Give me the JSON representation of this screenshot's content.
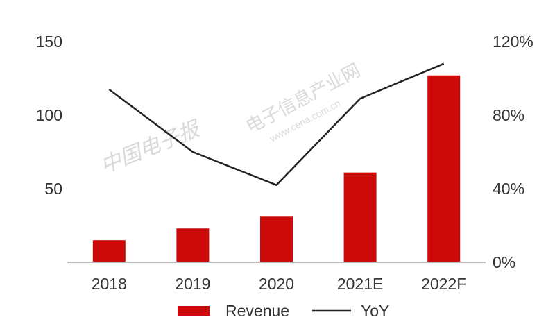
{
  "chart_data": {
    "type": "bar",
    "categories": [
      "2018",
      "2019",
      "2020",
      "2021E",
      "2022F"
    ],
    "series": [
      {
        "name": "Revenue",
        "type": "bar",
        "axis": "left",
        "values": [
          15,
          23,
          31,
          61,
          127
        ]
      },
      {
        "name": "YoY",
        "type": "line",
        "axis": "right",
        "values": [
          0.94,
          0.6,
          0.42,
          0.89,
          1.08
        ]
      }
    ],
    "y_left": {
      "ticks": [
        "50",
        "100",
        "150"
      ],
      "ylim": [
        0,
        150
      ],
      "tick_values": [
        50,
        100,
        150
      ]
    },
    "y_right": {
      "ticks": [
        "0%",
        "40%",
        "80%",
        "120%"
      ],
      "ylim": [
        0,
        1.2
      ],
      "tick_values": [
        0,
        0.4,
        0.8,
        1.2
      ]
    },
    "legend": {
      "position": "bottom",
      "items": [
        "Revenue",
        "YoY"
      ]
    },
    "grid": false,
    "colors": {
      "bar": "#cc0a0a",
      "line": "#222222",
      "axis": "#8c8c8c"
    }
  },
  "watermark": {
    "line1": "电子信息产业网",
    "line2": "www.cena.com.cn",
    "logo": "中国电子报"
  }
}
